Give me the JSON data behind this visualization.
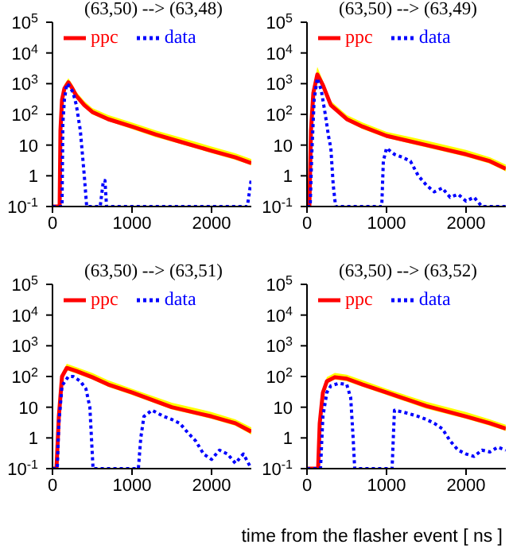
{
  "chart_data": [
    {
      "type": "line",
      "title": "(63,50) --> (63,48)",
      "log": "y",
      "legend": "top",
      "xlim": [
        0,
        2500
      ],
      "xticks": [
        0,
        1000,
        2000
      ],
      "ylim": [
        0.1,
        100000
      ],
      "yticks": [
        {
          "value": 0.1,
          "label": "10$^{-1}$"
        },
        {
          "value": 1,
          "label": "1"
        },
        {
          "value": 10,
          "label": "10"
        },
        {
          "value": 100,
          "label": "10$^{2}$"
        },
        {
          "value": 1000,
          "label": "10$^{3}$"
        },
        {
          "value": 10000,
          "label": "10$^{4}$"
        },
        {
          "value": 100000,
          "label": "10$^{5}$"
        }
      ],
      "series": [
        {
          "name": "ppc",
          "color": "#ff0000",
          "line_style": "solid",
          "x": [
            0,
            90,
            100,
            120,
            150,
            200,
            250,
            300,
            400,
            500,
            700,
            1000,
            1300,
            1600,
            2000,
            2300,
            2500
          ],
          "values": [
            0.1,
            0.1,
            30,
            300,
            700,
            1100,
            700,
            400,
            200,
            120,
            70,
            40,
            22,
            13,
            6.5,
            4,
            2.6
          ],
          "lower": [
            0.1,
            0.1,
            25,
            250,
            600,
            900,
            600,
            330,
            170,
            100,
            60,
            33,
            18,
            11,
            5.5,
            3.3,
            2.2
          ],
          "upper": [
            0.1,
            0.1,
            40,
            400,
            950,
            1500,
            950,
            540,
            270,
            160,
            95,
            54,
            30,
            18,
            9,
            5.4,
            3.5
          ]
        },
        {
          "name": "data",
          "color": "#0000ff",
          "line_style": "dotted",
          "x": [
            0,
            100,
            120,
            130,
            150,
            180,
            220,
            260,
            300,
            350,
            400,
            430,
            600,
            640,
            660,
            680,
            2450,
            2500
          ],
          "values": [
            0.1,
            0.1,
            0.1,
            50,
            300,
            1000,
            800,
            500,
            200,
            30,
            1,
            0.1,
            0.1,
            0.7,
            0.7,
            0.1,
            0.1,
            0.8
          ]
        }
      ]
    },
    {
      "type": "line",
      "title": "(63,50) --> (63,49)",
      "log": "y",
      "legend": "top",
      "xlim": [
        0,
        2500
      ],
      "xticks": [
        0,
        1000,
        2000
      ],
      "ylim": [
        0.1,
        100000
      ],
      "yticks": [
        {
          "value": 0.1,
          "label": "10$^{-1}$"
        },
        {
          "value": 1,
          "label": "1"
        },
        {
          "value": 10,
          "label": "10"
        },
        {
          "value": 100,
          "label": "10$^{2}$"
        },
        {
          "value": 1000,
          "label": "10$^{3}$"
        },
        {
          "value": 10000,
          "label": "10$^{4}$"
        },
        {
          "value": 100000,
          "label": "10$^{5}$"
        }
      ],
      "series": [
        {
          "name": "ppc",
          "color": "#ff0000",
          "line_style": "solid",
          "x": [
            0,
            30,
            50,
            80,
            130,
            200,
            300,
            500,
            700,
            1000,
            1500,
            2000,
            2300,
            2500
          ],
          "values": [
            0.1,
            0.1,
            30,
            500,
            2000,
            900,
            200,
            70,
            40,
            20,
            10,
            5,
            3,
            1.7
          ],
          "lower": [
            0.1,
            0.1,
            25,
            420,
            1700,
            750,
            170,
            60,
            33,
            17,
            8.5,
            4.2,
            2.5,
            1.4
          ],
          "upper": [
            0.1,
            0.1,
            40,
            700,
            3500,
            1250,
            270,
            95,
            54,
            27,
            14,
            7,
            4,
            2.3
          ]
        },
        {
          "name": "data",
          "color": "#0000ff",
          "line_style": "dotted",
          "x": [
            0,
            40,
            60,
            90,
            130,
            180,
            230,
            270,
            300,
            330,
            360,
            940,
            960,
            1000,
            1100,
            1200,
            1300,
            1400,
            1500,
            1600,
            1700,
            1800,
            1900,
            2000,
            2100,
            2200,
            2500
          ],
          "values": [
            0.1,
            0.1,
            5,
            300,
            1500,
            600,
            100,
            20,
            8,
            0.5,
            0.1,
            0.1,
            3,
            8,
            5,
            4,
            3,
            1,
            0.5,
            0.3,
            0.4,
            0.2,
            0.25,
            0.15,
            0.2,
            0.1,
            0.1
          ]
        }
      ]
    },
    {
      "type": "line",
      "title": "(63,50) --> (63,51)",
      "log": "y",
      "legend": "top",
      "xlim": [
        0,
        2500
      ],
      "xticks": [
        0,
        1000,
        2000
      ],
      "ylim": [
        0.1,
        100000
      ],
      "yticks": [
        {
          "value": 0.1,
          "label": "10$^{-1}$"
        },
        {
          "value": 1,
          "label": "1"
        },
        {
          "value": 10,
          "label": "10"
        },
        {
          "value": 100,
          "label": "10$^{2}$"
        },
        {
          "value": 1000,
          "label": "10$^{3}$"
        },
        {
          "value": 10000,
          "label": "10$^{4}$"
        },
        {
          "value": 100000,
          "label": "10$^{5}$"
        }
      ],
      "series": [
        {
          "name": "ppc",
          "color": "#ff0000",
          "line_style": "solid",
          "x": [
            0,
            50,
            80,
            120,
            180,
            300,
            500,
            700,
            1000,
            1500,
            2000,
            2300,
            2500
          ],
          "values": [
            0.1,
            0.1,
            5,
            100,
            190,
            150,
            95,
            55,
            30,
            10,
            5,
            3,
            1.6
          ],
          "lower": [
            0.1,
            0.1,
            4,
            85,
            160,
            125,
            80,
            46,
            25,
            8.5,
            4.2,
            2.5,
            1.3
          ],
          "upper": [
            0.1,
            0.1,
            7,
            135,
            260,
            200,
            130,
            75,
            40,
            14,
            7,
            4,
            2.2
          ]
        },
        {
          "name": "data",
          "color": "#0000ff",
          "line_style": "dotted",
          "x": [
            0,
            60,
            80,
            120,
            200,
            260,
            350,
            420,
            470,
            490,
            510,
            1080,
            1110,
            1150,
            1250,
            1400,
            1500,
            1600,
            1700,
            1800,
            1900,
            2000,
            2100,
            2200,
            2300,
            2400,
            2500
          ],
          "values": [
            0.1,
            0.1,
            3,
            50,
            100,
            100,
            70,
            40,
            10,
            1,
            0.1,
            0.1,
            1,
            5,
            8,
            5,
            4,
            3,
            1.5,
            0.8,
            0.3,
            0.2,
            0.4,
            0.3,
            0.15,
            0.3,
            0.1
          ]
        }
      ]
    },
    {
      "type": "line",
      "title": "(63,50) --> (63,52)",
      "xlabel": "time from the flasher event [ ns ]",
      "log": "y",
      "legend": "top",
      "xlim": [
        0,
        2500
      ],
      "xticks": [
        0,
        1000,
        2000
      ],
      "ylim": [
        0.1,
        100000
      ],
      "yticks": [
        {
          "value": 0.1,
          "label": "10$^{-1}$"
        },
        {
          "value": 1,
          "label": "1"
        },
        {
          "value": 10,
          "label": "10"
        },
        {
          "value": 100,
          "label": "10$^{2}$"
        },
        {
          "value": 1000,
          "label": "10$^{3}$"
        },
        {
          "value": 10000,
          "label": "10$^{4}$"
        },
        {
          "value": 100000,
          "label": "10$^{5}$"
        }
      ],
      "series": [
        {
          "name": "ppc",
          "color": "#ff0000",
          "line_style": "solid",
          "x": [
            0,
            140,
            160,
            200,
            250,
            350,
            500,
            700,
            1000,
            1500,
            2000,
            2300,
            2500
          ],
          "values": [
            0.1,
            0.1,
            3,
            30,
            70,
            95,
            85,
            55,
            30,
            11,
            5,
            3,
            2
          ],
          "lower": [
            0.1,
            0.1,
            2.5,
            25,
            60,
            80,
            70,
            46,
            25,
            9,
            4.2,
            2.5,
            1.7
          ],
          "upper": [
            0.1,
            0.1,
            4,
            40,
            95,
            130,
            115,
            75,
            40,
            15,
            7,
            4,
            2.7
          ]
        },
        {
          "name": "data",
          "color": "#0000ff",
          "line_style": "dotted",
          "x": [
            0,
            170,
            200,
            250,
            300,
            400,
            500,
            550,
            580,
            600,
            1070,
            1090,
            1100,
            1200,
            1300,
            1400,
            1500,
            1600,
            1700,
            1800,
            1900,
            2000,
            2100,
            2200,
            2300,
            2400,
            2500
          ],
          "values": [
            0.1,
            0.1,
            5,
            30,
            50,
            60,
            55,
            20,
            1,
            0.1,
            0.1,
            2,
            8,
            7,
            6,
            5,
            4,
            3,
            2,
            0.8,
            0.4,
            0.3,
            0.25,
            0.4,
            0.35,
            0.5,
            0.4
          ]
        }
      ]
    }
  ]
}
